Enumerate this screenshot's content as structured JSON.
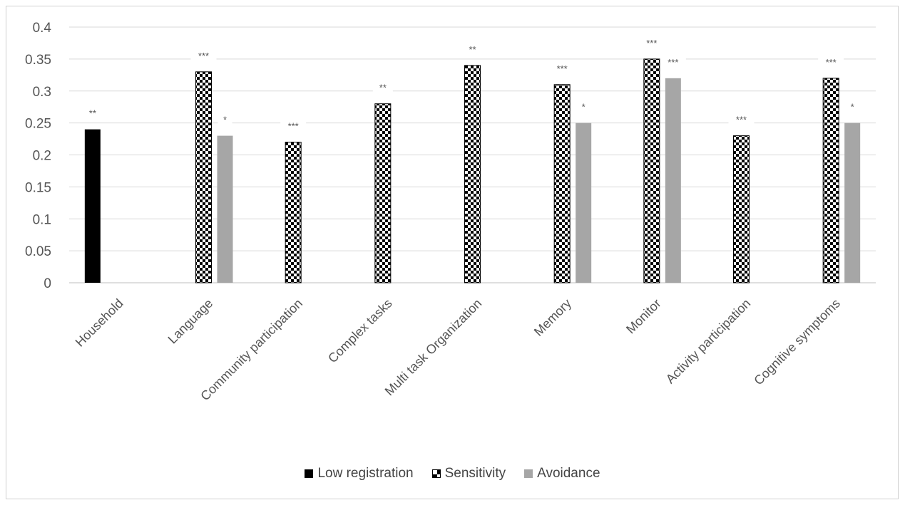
{
  "chart_data": {
    "type": "bar",
    "categories": [
      "Household",
      "Language",
      "Community participation",
      "Complex tasks",
      "Multi task Organization",
      "Memory",
      "Monitor",
      "Activity participation",
      "Cognitive symptoms"
    ],
    "series": [
      {
        "name": "Low registration",
        "color": "#000000",
        "pattern": "solid",
        "values": [
          0.24,
          null,
          null,
          null,
          null,
          null,
          null,
          null,
          null
        ]
      },
      {
        "name": "Sensitivity",
        "color": "#000000",
        "pattern": "checkerboard",
        "values": [
          null,
          0.33,
          0.22,
          0.28,
          0.34,
          0.31,
          0.35,
          0.23,
          0.32
        ]
      },
      {
        "name": "Avoidance",
        "color": "#a6a6a6",
        "pattern": "solid",
        "values": [
          null,
          0.23,
          null,
          null,
          null,
          0.25,
          0.32,
          null,
          0.25
        ]
      }
    ],
    "significance": [
      {
        "category": "Household",
        "series": "Low registration",
        "label": "**"
      },
      {
        "category": "Language",
        "series": "Sensitivity",
        "label": "***"
      },
      {
        "category": "Language",
        "series": "Avoidance",
        "label": "*"
      },
      {
        "category": "Community participation",
        "series": "Sensitivity",
        "label": "***"
      },
      {
        "category": "Complex tasks",
        "series": "Sensitivity",
        "label": "**"
      },
      {
        "category": "Multi task Organization",
        "series": "Sensitivity",
        "label": "**"
      },
      {
        "category": "Memory",
        "series": "Sensitivity",
        "label": "***"
      },
      {
        "category": "Memory",
        "series": "Avoidance",
        "label": "*"
      },
      {
        "category": "Monitor",
        "series": "Sensitivity",
        "label": "***"
      },
      {
        "category": "Monitor",
        "series": "Avoidance",
        "label": "***"
      },
      {
        "category": "Activity participation",
        "series": "Sensitivity",
        "label": "***"
      },
      {
        "category": "Cognitive symptoms",
        "series": "Sensitivity",
        "label": "***"
      },
      {
        "category": "Cognitive symptoms",
        "series": "Avoidance",
        "label": "*"
      }
    ],
    "yticks": [
      "0",
      "0.05",
      "0.1",
      "0.15",
      "0.2",
      "0.25",
      "0.3",
      "0.35",
      "0.4"
    ],
    "ylim": [
      0,
      0.4
    ],
    "grid": true,
    "legend": "bottom",
    "title": "",
    "xlabel": "",
    "ylabel": ""
  }
}
